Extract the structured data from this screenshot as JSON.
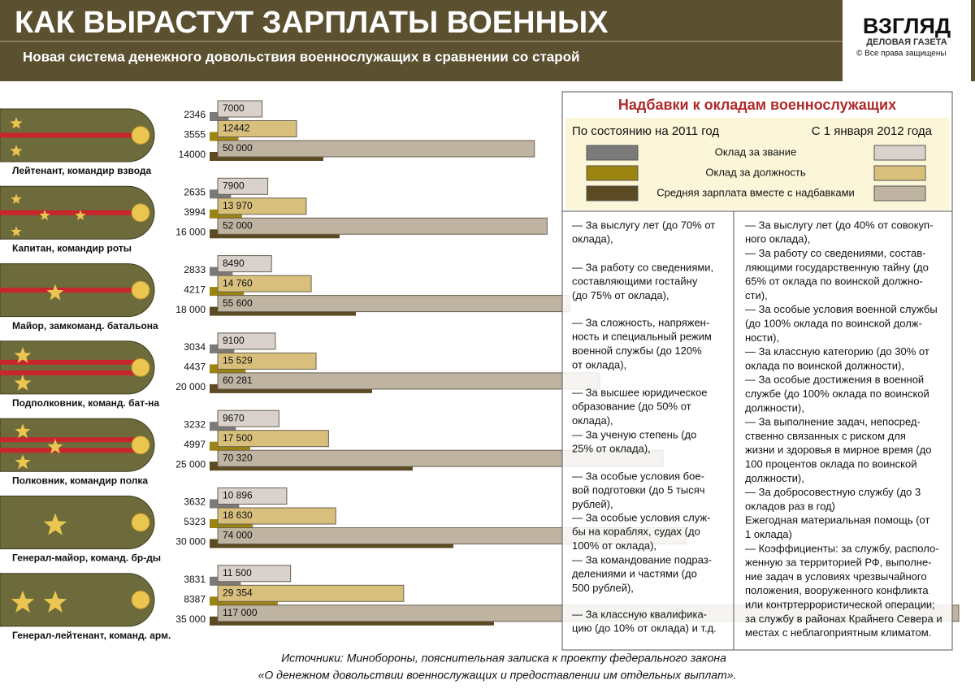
{
  "header": {
    "title": "КАК ВЫРАСТУТ ЗАРПЛАТЫ ВОЕННЫХ",
    "subtitle": "Новая система денежного довольствия военнослужащих в сравнении со старой",
    "logo": "ВЗГЛЯД",
    "logo_subtitle": "ДЕЛОВАЯ ГАЗЕТА",
    "rights": "© Все права защищены"
  },
  "chart_data": {
    "type": "bar",
    "orientation": "horizontal",
    "categories": [
      "Лейтенант, командир взвода",
      "Капитан, командир роты",
      "Майор, замкоманд. батальона",
      "Подполковник, команд. бат-на",
      "Полковник, командир полка",
      "Генерал-майор, команд. бр-ды",
      "Генерал-лейтенант, команд. арм."
    ],
    "periods": [
      "По состоянию на 2011 год",
      "С 1 января 2012 года"
    ],
    "series": [
      {
        "name": "Оклад за звание",
        "color_2011": "#7a7a7a",
        "color_2012": "#d9d1cb",
        "values_2011": [
          2346,
          2635,
          2833,
          3034,
          3232,
          3632,
          3831
        ],
        "value_labels_2011": [
          "2346",
          "2635",
          "2833",
          "3034",
          "3232",
          "3632",
          "3831"
        ],
        "values_2012": [
          7000,
          7900,
          8490,
          9100,
          9670,
          10896,
          11500
        ],
        "value_labels_2012": [
          "7000",
          "7900",
          "8490",
          "9100",
          "9670",
          "10 896",
          "11 500"
        ]
      },
      {
        "name": "Оклад за должность",
        "color_2011": "#9c8410",
        "color_2012": "#d8c07c",
        "values_2011": [
          3555,
          3994,
          4217,
          4437,
          4997,
          5323,
          8387
        ],
        "value_labels_2011": [
          "3555",
          "3994",
          "4217",
          "4437",
          "4997",
          "5323",
          "8387"
        ],
        "values_2012": [
          12442,
          13970,
          14760,
          15529,
          17500,
          18630,
          29354
        ],
        "value_labels_2012": [
          "12442",
          "13  970",
          "14 760",
          "15 529",
          "17 500",
          "18 630",
          "29 354"
        ]
      },
      {
        "name": "Средняя зарплата вместе с надбавками",
        "color_2011": "#5b4a22",
        "color_2012": "#bfb3a2",
        "values_2011": [
          14000,
          16000,
          18000,
          20000,
          25000,
          30000,
          35000
        ],
        "value_labels_2011": [
          "14000",
          "16 000",
          "18 000",
          "20 000",
          "25 000",
          "30 000",
          "35 000"
        ],
        "values_2012": [
          50000,
          52000,
          55600,
          60281,
          70320,
          74000,
          117000
        ],
        "value_labels_2012": [
          "50 000",
          "52 000",
          "55 600",
          "60 281",
          "70 320",
          "74 000",
          "117 000"
        ]
      }
    ]
  },
  "panel": {
    "title": "Надбавки к окладам военнослужащих",
    "old_items": [
      [
        "— За выслугу лет (до 70% от",
        "оклада),"
      ],
      [
        "— За работу со сведениями,",
        "составляющими гостайну",
        "(до 75% от оклада),"
      ],
      [
        "— За сложность, напряжен-",
        "ность и специальный режим",
        "военной службы (до 120%",
        "от оклада),"
      ],
      [
        "— За высшее юридическое",
        "образование (до 50% от",
        "оклада),"
      ],
      [
        "— За ученую степень (до",
        "25% от оклада),"
      ],
      [
        "—  За особые условия бое-",
        "вой подготовки (до 5 тысяч",
        "рублей),"
      ],
      [
        "— За особые условия служ-",
        "бы на кораблях, судах (до",
        "100% от оклада),"
      ],
      [
        "— За командование подраз-",
        "делениями и частями (до",
        "500 рублей),"
      ],
      [
        "— За классную квалифика-",
        "цию (до 10% от оклада)  и т.д."
      ]
    ],
    "new_lines": [
      "— За выслугу лет (до 40% от совокуп-",
      "ного оклада),",
      "— За работу со сведениями, состав-",
      "ляющими государственную тайну (до",
      "65% от оклада по воинской должно-",
      "сти),",
      "— За особые условия военной службы",
      "(до 100% оклада по воинской долж-",
      "ности),",
      "— За классную категорию (до 30% от",
      "оклада по воинской должности),",
      "— За особые достижения в военной",
      "службе (до 100% оклада по воинской",
      "должности),",
      "— За выполнение задач, непосред-",
      "ственно связанных с риском для",
      "жизни и здоровья в мирное время (до",
      "100 процентов оклада по воинской",
      "должности),",
      "— За добросовестную службу (до 3",
      "окладов раз в год)",
      "Ежегодная материальная помощь (от",
      "1 оклада)",
      "— Коэффициенты: за службу, располо-",
      "женную за территорией РФ, выполне-",
      "ние задач в условиях чрезвычайного",
      "положения, вооруженного конфликта",
      "или контртеррористической операции;",
      "за службу в районах Крайнего Севера и",
      "местах с неблагоприятным климатом."
    ]
  },
  "footer": {
    "sources": [
      "Источники: Минобороны, пояснительная записка к проекту федерального закона",
      "«О денежном довольствии военнослужащих  и предоставлении им отдельных выплат»."
    ]
  }
}
